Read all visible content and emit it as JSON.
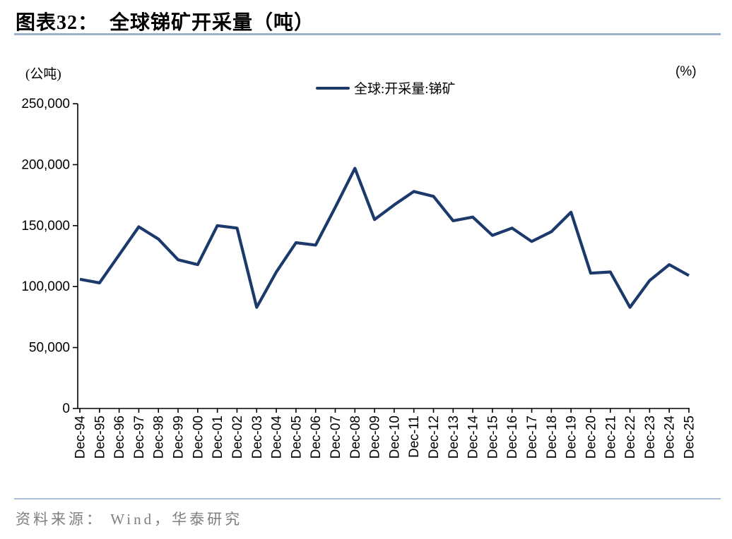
{
  "page": {
    "title": "图表32：  全球锑矿开采量（吨）",
    "left_axis_unit": "(公吨)",
    "right_axis_unit": "(%)",
    "source": "资料来源： Wind，华泰研究"
  },
  "legend": {
    "label": "全球:开采量:锑矿"
  },
  "colors": {
    "line": "#1B3A6B",
    "rule": "#9DB3CB",
    "source_text": "#7F7F7F",
    "axis": "#000000"
  },
  "chart_data": {
    "type": "line",
    "title": "全球锑矿开采量（吨）",
    "series_name": "全球:开采量:锑矿",
    "x": [
      "Dec-94",
      "Dec-95",
      "Dec-96",
      "Dec-97",
      "Dec-98",
      "Dec-99",
      "Dec-00",
      "Dec-01",
      "Dec-02",
      "Dec-03",
      "Dec-04",
      "Dec-05",
      "Dec-06",
      "Dec-07",
      "Dec-08",
      "Dec-09",
      "Dec-10",
      "Dec-11",
      "Dec-12",
      "Dec-13",
      "Dec-14",
      "Dec-15",
      "Dec-16",
      "Dec-17",
      "Dec-18",
      "Dec-19",
      "Dec-20",
      "Dec-21",
      "Dec-22",
      "Dec-23",
      "Dec-24",
      "Dec-25"
    ],
    "values": [
      106000,
      103000,
      126000,
      149000,
      139000,
      122000,
      118000,
      150000,
      148000,
      83000,
      112000,
      136000,
      134000,
      165000,
      197000,
      155000,
      167000,
      178000,
      174000,
      154000,
      157000,
      142000,
      148000,
      137000,
      145000,
      161000,
      111000,
      112000,
      83000,
      105000,
      118000,
      109000
    ],
    "ylabel": "(公吨)",
    "y2label": "(%)",
    "xlabel": "",
    "ylim": [
      0,
      250000
    ],
    "ytick_values": [
      0,
      50000,
      100000,
      150000,
      200000,
      250000
    ],
    "ytick_labels": [
      "0",
      "50,000",
      "100,000",
      "150,000",
      "200,000",
      "250,000"
    ],
    "grid": false,
    "legend_position": "top-center"
  }
}
